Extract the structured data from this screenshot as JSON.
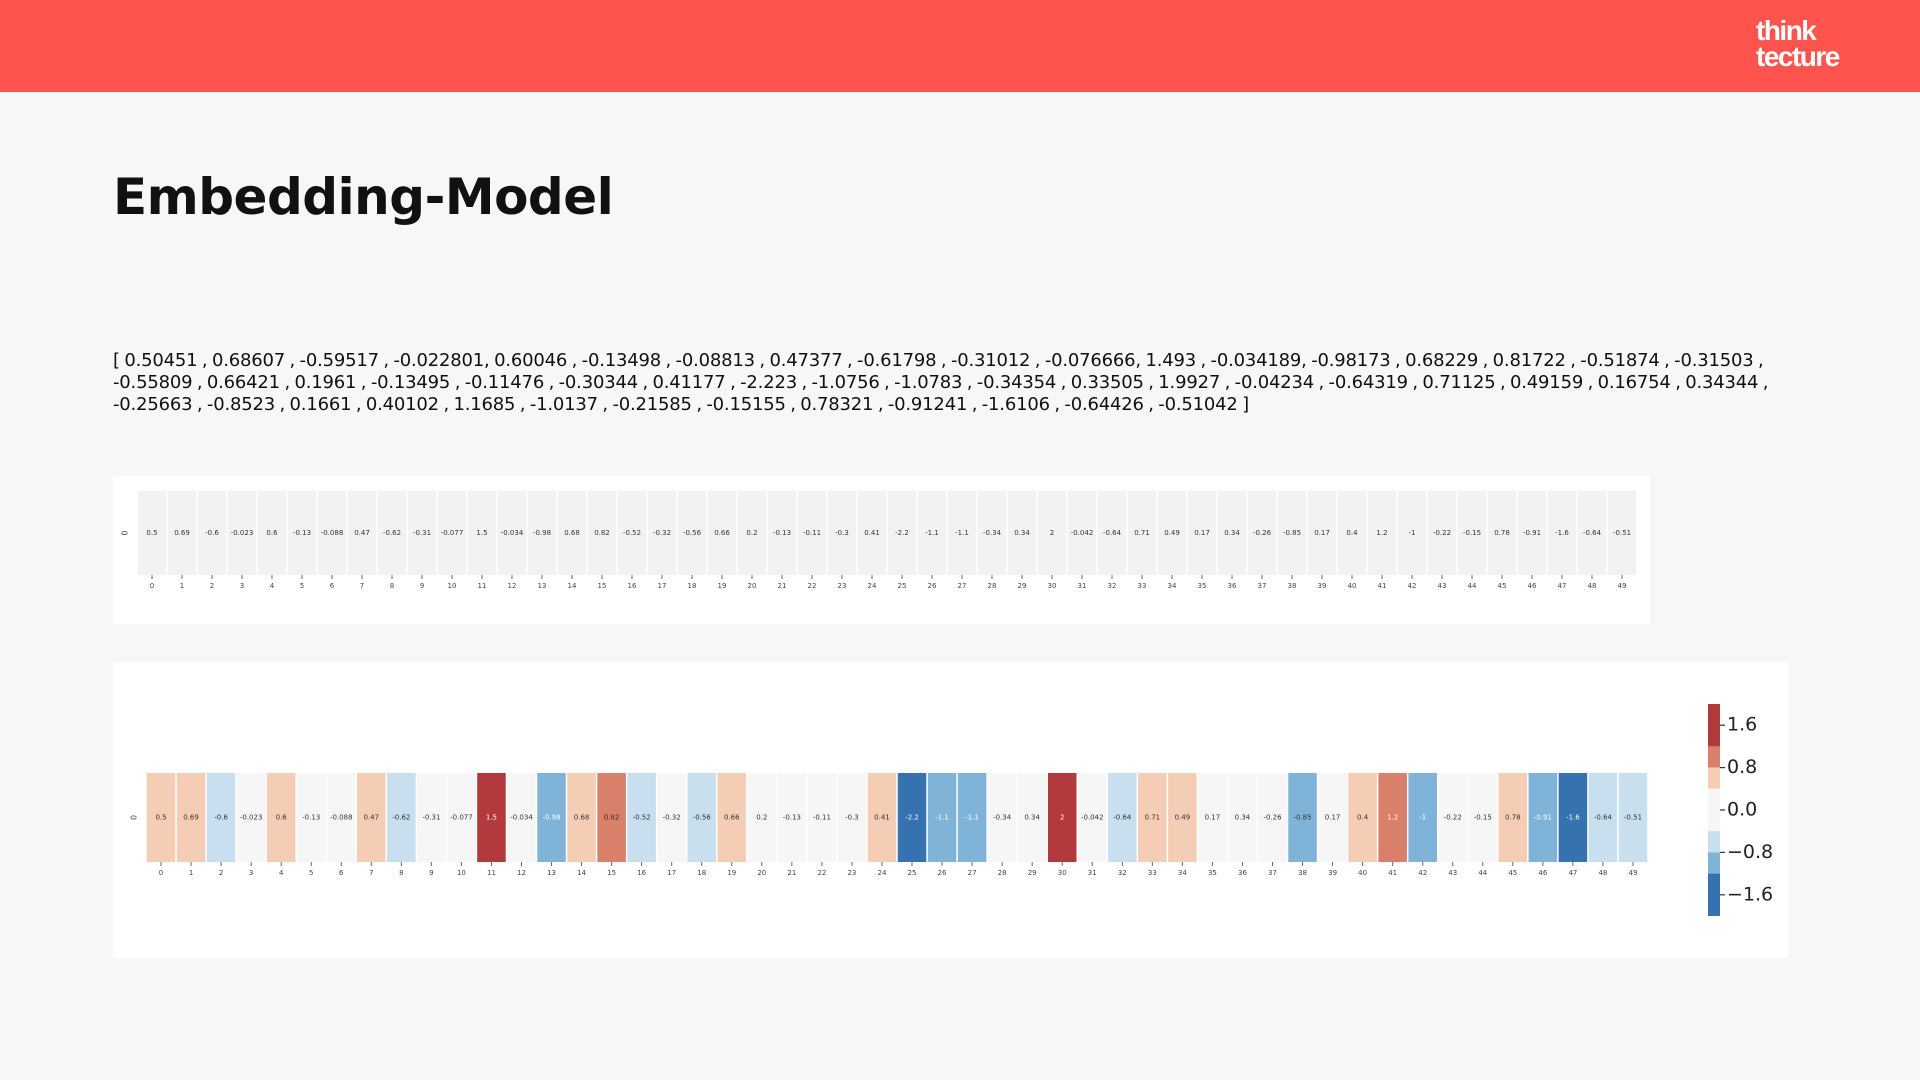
{
  "brand": {
    "line1": "think",
    "line2": "tecture",
    "color": "#ff544d"
  },
  "slide": {
    "title": "Embedding-Model",
    "vector_text": "[ 0.50451 , 0.68607 , -0.59517 , -0.022801, 0.60046 , -0.13498 , -0.08813 , 0.47377 , -0.61798 , -0.31012 , -0.076666, 1.493 , -0.034189, -0.98173 , 0.68229 , 0.81722 , -0.51874 , -0.31503 , -0.55809 , 0.66421 , 0.1961 , -0.13495 , -0.11476 , -0.30344 , 0.41177 , -2.223 , -1.0756 , -1.0783 , -0.34354 , 0.33505 , 1.9927 , -0.04234 , -0.64319 , 0.71125 , 0.49159 , 0.16754 , 0.34344 , -0.25663 , -0.8523 , 0.1661 , 0.40102 , 1.1685 , -1.0137 , -0.21585 , -0.15155 , 0.78321 , -0.91241 , -1.6106 , -0.64426 , -0.51042 ]"
  },
  "chart_data": [
    {
      "type": "heatmap",
      "colored": false,
      "row_labels": [
        "0"
      ],
      "x": [
        "0",
        "1",
        "2",
        "3",
        "4",
        "5",
        "6",
        "7",
        "8",
        "9",
        "10",
        "11",
        "12",
        "13",
        "14",
        "15",
        "16",
        "17",
        "18",
        "19",
        "20",
        "21",
        "22",
        "23",
        "24",
        "25",
        "26",
        "27",
        "28",
        "29",
        "30",
        "31",
        "32",
        "33",
        "34",
        "35",
        "36",
        "37",
        "38",
        "39",
        "40",
        "41",
        "42",
        "43",
        "44",
        "45",
        "46",
        "47",
        "48",
        "49"
      ],
      "annotations": [
        "0.5",
        "0.69",
        "-0.6",
        "-0.023",
        "0.6",
        "-0.13",
        "-0.088",
        "0.47",
        "-0.62",
        "-0.31",
        "-0.077",
        "1.5",
        "-0.034",
        "-0.98",
        "0.68",
        "0.82",
        "-0.52",
        "-0.32",
        "-0.56",
        "0.66",
        "0.2",
        "-0.13",
        "-0.11",
        "-0.3",
        "0.41",
        "-2.2",
        "-1.1",
        "-1.1",
        "-0.34",
        "0.34",
        "2",
        "-0.042",
        "-0.64",
        "0.71",
        "0.49",
        "0.17",
        "0.34",
        "-0.26",
        "-0.85",
        "0.17",
        "0.4",
        "1.2",
        "-1",
        "-0.22",
        "-0.15",
        "0.78",
        "-0.91",
        "-1.6",
        "-0.64",
        "-0.51"
      ],
      "values": [
        0.50451,
        0.68607,
        -0.59517,
        -0.022801,
        0.60046,
        -0.13498,
        -0.08813,
        0.47377,
        -0.61798,
        -0.31012,
        -0.076666,
        1.493,
        -0.034189,
        -0.98173,
        0.68229,
        0.81722,
        -0.51874,
        -0.31503,
        -0.55809,
        0.66421,
        0.1961,
        -0.13495,
        -0.11476,
        -0.30344,
        0.41177,
        -2.223,
        -1.0756,
        -1.0783,
        -0.34354,
        0.33505,
        1.9927,
        -0.04234,
        -0.64319,
        0.71125,
        0.49159,
        0.16754,
        0.34344,
        -0.25663,
        -0.8523,
        0.1661,
        0.40102,
        1.1685,
        -1.0137,
        -0.21585,
        -0.15155,
        0.78321,
        -0.91241,
        -1.6106,
        -0.64426,
        -0.51042
      ],
      "cell_color": "#f3f2f2"
    },
    {
      "type": "heatmap",
      "colored": true,
      "colormap": "RdBu_r",
      "row_labels": [
        "0"
      ],
      "x": [
        "0",
        "1",
        "2",
        "3",
        "4",
        "5",
        "6",
        "7",
        "8",
        "9",
        "10",
        "11",
        "12",
        "13",
        "14",
        "15",
        "16",
        "17",
        "18",
        "19",
        "20",
        "21",
        "22",
        "23",
        "24",
        "25",
        "26",
        "27",
        "28",
        "29",
        "30",
        "31",
        "32",
        "33",
        "34",
        "35",
        "36",
        "37",
        "38",
        "39",
        "40",
        "41",
        "42",
        "43",
        "44",
        "45",
        "46",
        "47",
        "48",
        "49"
      ],
      "annotations": [
        "0.5",
        "0.69",
        "-0.6",
        "-0.023",
        "0.6",
        "-0.13",
        "-0.088",
        "0.47",
        "-0.62",
        "-0.31",
        "-0.077",
        "1.5",
        "-0.034",
        "-0.98",
        "0.68",
        "0.82",
        "-0.52",
        "-0.32",
        "-0.56",
        "0.66",
        "0.2",
        "-0.13",
        "-0.11",
        "-0.3",
        "0.41",
        "-2.2",
        "-1.1",
        "-1.1",
        "-0.34",
        "0.34",
        "2",
        "-0.042",
        "-0.64",
        "0.71",
        "0.49",
        "0.17",
        "0.34",
        "-0.26",
        "-0.85",
        "0.17",
        "0.4",
        "1.2",
        "-1",
        "-0.22",
        "-0.15",
        "0.78",
        "-0.91",
        "-1.6",
        "-0.64",
        "-0.51"
      ],
      "values": [
        0.50451,
        0.68607,
        -0.59517,
        -0.022801,
        0.60046,
        -0.13498,
        -0.08813,
        0.47377,
        -0.61798,
        -0.31012,
        -0.076666,
        1.493,
        -0.034189,
        -0.98173,
        0.68229,
        0.81722,
        -0.51874,
        -0.31503,
        -0.55809,
        0.66421,
        0.1961,
        -0.13495,
        -0.11476,
        -0.30344,
        0.41177,
        -2.223,
        -1.0756,
        -1.0783,
        -0.34354,
        0.33505,
        1.9927,
        -0.04234,
        -0.64319,
        0.71125,
        0.49159,
        0.16754,
        0.34344,
        -0.25663,
        -0.8523,
        0.1661,
        0.40102,
        1.1685,
        -1.0137,
        -0.21585,
        -0.15155,
        0.78321,
        -0.91241,
        -1.6106,
        -0.64426,
        -0.51042
      ],
      "colorbar": {
        "ticks": [
          1.6,
          0.8,
          0.0,
          -0.8,
          -1.6
        ],
        "tick_labels": [
          "1.6",
          "0.8",
          "0.0",
          "−0.8",
          "−1.6"
        ],
        "range": [
          -2.0,
          2.0
        ],
        "bins": [
          {
            "from": 1.2,
            "to": 2.0,
            "color": "#b2393c"
          },
          {
            "from": 0.8,
            "to": 1.2,
            "color": "#d9806a"
          },
          {
            "from": 0.4,
            "to": 0.8,
            "color": "#f5cdb5"
          },
          {
            "from": -0.4,
            "to": 0.4,
            "color": "#f7f6f6"
          },
          {
            "from": -0.8,
            "to": -0.4,
            "color": "#c7dfee"
          },
          {
            "from": -1.2,
            "to": -0.8,
            "color": "#7fb4d8"
          },
          {
            "from": -2.0,
            "to": -1.2,
            "color": "#3671b0"
          }
        ]
      }
    }
  ]
}
